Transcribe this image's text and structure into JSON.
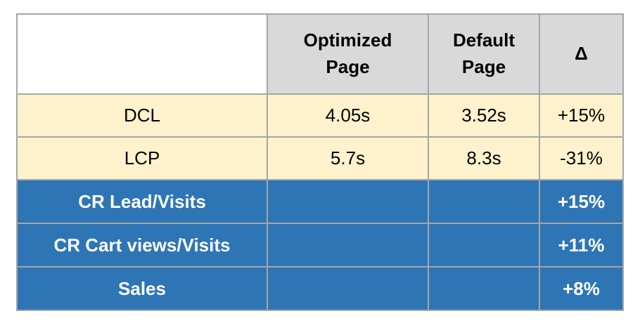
{
  "table": {
    "title_semantic": "page-performance-comparison-table",
    "columns": {
      "label": "",
      "optimized": "Optimized\nPage",
      "default": "Default\nPage",
      "delta": "Δ"
    },
    "rows": [
      {
        "label": "DCL",
        "optimized": "4.05s",
        "default": "3.52s",
        "delta": "+15%",
        "style": "cream"
      },
      {
        "label": "LCP",
        "optimized": "5.7s",
        "default": "8.3s",
        "delta": "-31%",
        "style": "cream"
      },
      {
        "label": "CR Lead/Visits",
        "optimized": "",
        "default": "",
        "delta": "+15%",
        "style": "blue"
      },
      {
        "label": "CR Cart views/Visits",
        "optimized": "",
        "default": "",
        "delta": "+11%",
        "style": "blue"
      },
      {
        "label": "Sales",
        "optimized": "",
        "default": "",
        "delta": "+8%",
        "style": "blue"
      }
    ],
    "colors": {
      "header_bg": "#d9d9d9",
      "metric_row_bg": "#fff2cc",
      "conversion_row_bg": "#2e75b6",
      "border": "#a6a6a6",
      "header_text": "#000000",
      "conversion_text": "#ffffff"
    }
  }
}
